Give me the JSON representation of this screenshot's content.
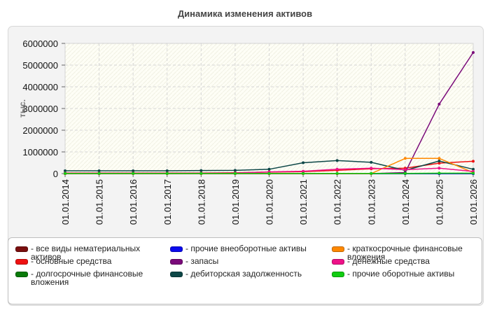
{
  "chart_data": {
    "type": "line",
    "title": "Динамика изменения активов",
    "ylabel": "тыс.",
    "xlabel": "",
    "ylim": [
      0,
      6000000
    ],
    "yticks": [
      0,
      1000000,
      2000000,
      3000000,
      4000000,
      5000000,
      6000000
    ],
    "grid": true,
    "legend_position": "bottom",
    "categories": [
      "01.01.2014",
      "01.01.2015",
      "01.01.2016",
      "01.01.2017",
      "01.01.2018",
      "01.01.2019",
      "01.01.2020",
      "01.01.2021",
      "01.01.2022",
      "01.01.2023",
      "01.01.2024",
      "01.01.2025",
      "01.01.2026"
    ],
    "series": [
      {
        "name": "- все виды нематериальных активов",
        "color": "#7a0f0f",
        "values": [
          0,
          0,
          0,
          0,
          0,
          0,
          0,
          0,
          0,
          0,
          0,
          0,
          0
        ]
      },
      {
        "name": "- основные средства",
        "color": "#ee1111",
        "values": [
          30000,
          30000,
          30000,
          30000,
          30000,
          40000,
          70000,
          90000,
          150000,
          220000,
          250000,
          480000,
          570000
        ]
      },
      {
        "name": "- долгосрочные финансовые вложения",
        "color": "#0a7a0a",
        "values": [
          0,
          0,
          0,
          0,
          0,
          0,
          0,
          0,
          0,
          0,
          0,
          0,
          0
        ]
      },
      {
        "name": "- прочие внеоборотные активы",
        "color": "#0b0bee",
        "values": [
          0,
          0,
          0,
          0,
          0,
          0,
          0,
          0,
          0,
          0,
          0,
          0,
          0
        ]
      },
      {
        "name": "- запасы",
        "color": "#7a0a7a",
        "values": [
          0,
          0,
          0,
          0,
          0,
          0,
          0,
          0,
          0,
          0,
          50000,
          3200000,
          5580000
        ]
      },
      {
        "name": "- дебиторская задолженность",
        "color": "#0d4747",
        "values": [
          130000,
          130000,
          130000,
          130000,
          140000,
          150000,
          200000,
          500000,
          600000,
          520000,
          150000,
          580000,
          200000
        ]
      },
      {
        "name": "- краткосрочные финансовые вложения",
        "color": "#ff8800",
        "values": [
          0,
          0,
          0,
          0,
          0,
          0,
          0,
          0,
          0,
          0,
          700000,
          700000,
          50000
        ]
      },
      {
        "name": "- денежные средства",
        "color": "#ee1188",
        "values": [
          20000,
          20000,
          20000,
          20000,
          20000,
          30000,
          80000,
          110000,
          200000,
          250000,
          180000,
          250000,
          100000
        ]
      },
      {
        "name": "- прочие оборотные активы",
        "color": "#11cc11",
        "values": [
          10000,
          10000,
          10000,
          10000,
          10000,
          10000,
          10000,
          10000,
          10000,
          10000,
          10000,
          20000,
          20000
        ]
      }
    ]
  }
}
